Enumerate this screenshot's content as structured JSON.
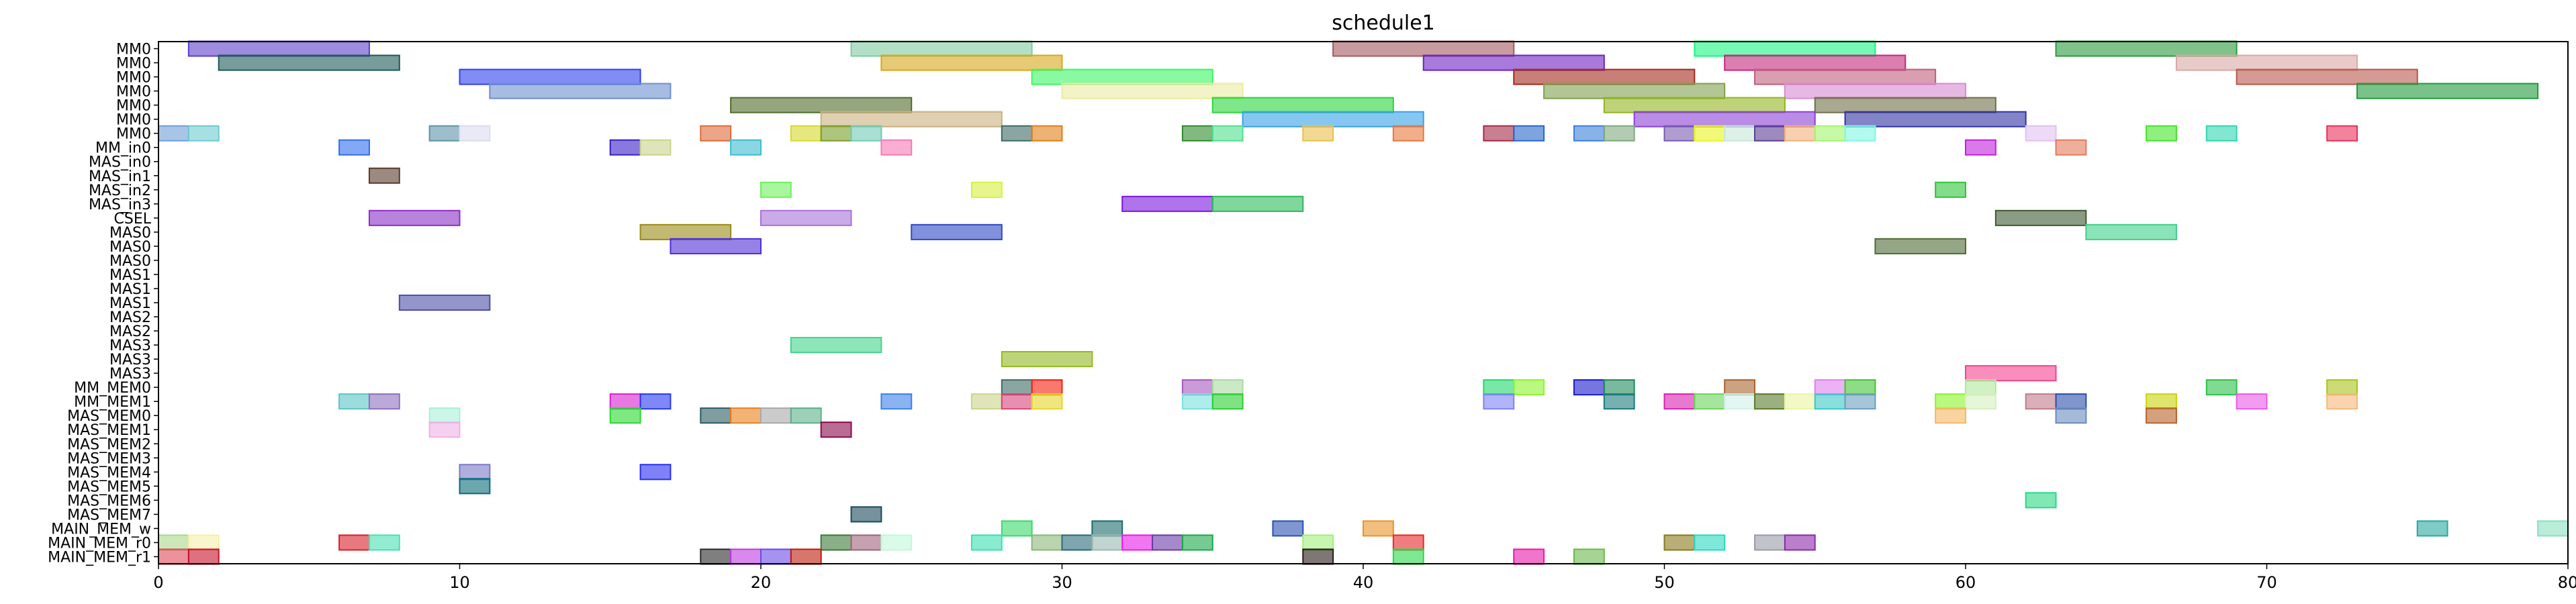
{
  "chart_data": {
    "type": "gantt",
    "title": "schedule1",
    "xlabel": "",
    "ylabel": "",
    "xlim": [
      0,
      80
    ],
    "x_ticks": [
      0,
      10,
      20,
      30,
      40,
      50,
      60,
      70,
      80
    ],
    "grid": false,
    "rows": [
      "MM0",
      "MM0",
      "MM0",
      "MM0",
      "MM0",
      "MM0",
      "MM0",
      "MM_in0",
      "MAS_in0",
      "MAS_in1",
      "MAS_in2",
      "MAS_in3",
      "CSEL",
      "MAS0",
      "MAS0",
      "MAS0",
      "MAS1",
      "MAS1",
      "MAS1",
      "MAS2",
      "MAS2",
      "MAS3",
      "MAS3",
      "MAS3",
      "MM_MEM0",
      "MM_MEM1",
      "MAS_MEM0",
      "MAS_MEM1",
      "MAS_MEM2",
      "MAS_MEM3",
      "MAS_MEM4",
      "MAS_MEM5",
      "MAS_MEM6",
      "MAS_MEM7",
      "MAIN_MEM_w",
      "MAIN_MEM_r0",
      "MAIN_MEM_r1"
    ],
    "tasks": [
      {
        "row": 0,
        "start": 1,
        "end": 7,
        "color": "#5b3fc9"
      },
      {
        "row": 0,
        "start": 23,
        "end": 29,
        "color": "#7fcba0"
      },
      {
        "row": 0,
        "start": 39,
        "end": 45,
        "color": "#a35a5e"
      },
      {
        "row": 0,
        "start": 51,
        "end": 57,
        "color": "#19f582"
      },
      {
        "row": 0,
        "start": 63,
        "end": 69,
        "color": "#2b9b3c"
      },
      {
        "row": 1,
        "start": 2,
        "end": 8,
        "color": "#1c5a56"
      },
      {
        "row": 1,
        "start": 24,
        "end": 30,
        "color": "#d9a61b"
      },
      {
        "row": 1,
        "start": 42,
        "end": 48,
        "color": "#6d22c4"
      },
      {
        "row": 1,
        "start": 52,
        "end": 58,
        "color": "#c4287c"
      },
      {
        "row": 1,
        "start": 67,
        "end": 73,
        "color": "#d9a8a5"
      },
      {
        "row": 2,
        "start": 10,
        "end": 16,
        "color": "#2f3fee"
      },
      {
        "row": 2,
        "start": 29,
        "end": 35,
        "color": "#3af762"
      },
      {
        "row": 2,
        "start": 45,
        "end": 51,
        "color": "#a22a1c"
      },
      {
        "row": 2,
        "start": 53,
        "end": 59,
        "color": "#c05d7c"
      },
      {
        "row": 2,
        "start": 69,
        "end": 75,
        "color": "#b8574b"
      },
      {
        "row": 3,
        "start": 11,
        "end": 17,
        "color": "#6d8fcf"
      },
      {
        "row": 3,
        "start": 30,
        "end": 36,
        "color": "#eaeba0"
      },
      {
        "row": 3,
        "start": 46,
        "end": 52,
        "color": "#7fa04e"
      },
      {
        "row": 3,
        "start": 54,
        "end": 60,
        "color": "#d889d4"
      },
      {
        "row": 3,
        "start": 73,
        "end": 79,
        "color": "#1f9a3a"
      },
      {
        "row": 4,
        "start": 19,
        "end": 25,
        "color": "#4e6b2a"
      },
      {
        "row": 4,
        "start": 35,
        "end": 41,
        "color": "#29d63a"
      },
      {
        "row": 4,
        "start": 48,
        "end": 54,
        "color": "#93b51f"
      },
      {
        "row": 4,
        "start": 55,
        "end": 61,
        "color": "#6e7046"
      },
      {
        "row": 5,
        "start": 22,
        "end": 28,
        "color": "#c9b17e"
      },
      {
        "row": 5,
        "start": 36,
        "end": 42,
        "color": "#36a1e8"
      },
      {
        "row": 5,
        "start": 49,
        "end": 55,
        "color": "#8a40d6"
      },
      {
        "row": 5,
        "start": 56,
        "end": 62,
        "color": "#3132a3"
      },
      {
        "row": 6,
        "start": 0,
        "end": 1,
        "color": "#6f9ed6"
      },
      {
        "row": 6,
        "start": 1,
        "end": 2,
        "color": "#6ccbd0"
      },
      {
        "row": 6,
        "start": 9,
        "end": 10,
        "color": "#5d93a8"
      },
      {
        "row": 6,
        "start": 10,
        "end": 11,
        "color": "#dadcf0"
      },
      {
        "row": 6,
        "start": 18,
        "end": 19,
        "color": "#dd6a3a"
      },
      {
        "row": 6,
        "start": 21,
        "end": 22,
        "color": "#d6d92a"
      },
      {
        "row": 6,
        "start": 22,
        "end": 23,
        "color": "#7a9e27"
      },
      {
        "row": 6,
        "start": 23,
        "end": 24,
        "color": "#6fcbb5"
      },
      {
        "row": 6,
        "start": 28,
        "end": 29,
        "color": "#3d6b64"
      },
      {
        "row": 6,
        "start": 29,
        "end": 30,
        "color": "#e07f1a"
      },
      {
        "row": 6,
        "start": 34,
        "end": 35,
        "color": "#2e8b2a"
      },
      {
        "row": 6,
        "start": 35,
        "end": 36,
        "color": "#4fe08c"
      },
      {
        "row": 6,
        "start": 38,
        "end": 39,
        "color": "#e8c04d"
      },
      {
        "row": 6,
        "start": 41,
        "end": 42,
        "color": "#e8783e"
      },
      {
        "row": 6,
        "start": 44,
        "end": 45,
        "color": "#a42a48"
      },
      {
        "row": 6,
        "start": 45,
        "end": 46,
        "color": "#2767c9"
      },
      {
        "row": 6,
        "start": 47,
        "end": 48,
        "color": "#3b7fd9"
      },
      {
        "row": 6,
        "start": 48,
        "end": 49,
        "color": "#7fa87d"
      },
      {
        "row": 6,
        "start": 50,
        "end": 51,
        "color": "#7a5bb0"
      },
      {
        "row": 6,
        "start": 51,
        "end": 52,
        "color": "#eaf520"
      },
      {
        "row": 6,
        "start": 52,
        "end": 53,
        "color": "#c7e8d8"
      },
      {
        "row": 6,
        "start": 53,
        "end": 54,
        "color": "#5c3d94"
      },
      {
        "row": 6,
        "start": 54,
        "end": 55,
        "color": "#f4b07a"
      },
      {
        "row": 6,
        "start": 55,
        "end": 56,
        "color": "#a3f56a"
      },
      {
        "row": 6,
        "start": 56,
        "end": 57,
        "color": "#7ff7e2"
      },
      {
        "row": 6,
        "start": 62,
        "end": 63,
        "color": "#e0c2f0"
      },
      {
        "row": 6,
        "start": 66,
        "end": 67,
        "color": "#44e42a"
      },
      {
        "row": 6,
        "start": 68,
        "end": 69,
        "color": "#2fd6b0"
      },
      {
        "row": 6,
        "start": 72,
        "end": 73,
        "color": "#e8315c"
      },
      {
        "row": 7,
        "start": 6,
        "end": 7,
        "color": "#2e6ef0"
      },
      {
        "row": 7,
        "start": 15,
        "end": 16,
        "color": "#3a1fc4"
      },
      {
        "row": 7,
        "start": 16,
        "end": 17,
        "color": "#cad48a"
      },
      {
        "row": 7,
        "start": 19,
        "end": 20,
        "color": "#3cbdd0"
      },
      {
        "row": 7,
        "start": 24,
        "end": 25,
        "color": "#f57ab5"
      },
      {
        "row": 7,
        "start": 60,
        "end": 61,
        "color": "#c21fdc"
      },
      {
        "row": 7,
        "start": 63,
        "end": 64,
        "color": "#e57a5c"
      },
      {
        "row": 9,
        "start": 7,
        "end": 8,
        "color": "#5a3b2a"
      },
      {
        "row": 10,
        "start": 20,
        "end": 21,
        "color": "#6ef05c"
      },
      {
        "row": 10,
        "start": 27,
        "end": 28,
        "color": "#d6f040"
      },
      {
        "row": 10,
        "start": 59,
        "end": 60,
        "color": "#2ec43a"
      },
      {
        "row": 11,
        "start": 32,
        "end": 35,
        "color": "#7a16e0"
      },
      {
        "row": 11,
        "start": 35,
        "end": 38,
        "color": "#2cba5a"
      },
      {
        "row": 12,
        "start": 7,
        "end": 10,
        "color": "#8a2fc4"
      },
      {
        "row": 12,
        "start": 20,
        "end": 23,
        "color": "#a872d8"
      },
      {
        "row": 12,
        "start": 61,
        "end": 64,
        "color": "#3d5a30"
      },
      {
        "row": 13,
        "start": 16,
        "end": 19,
        "color": "#9a8a14"
      },
      {
        "row": 13,
        "start": 25,
        "end": 28,
        "color": "#2f48c4"
      },
      {
        "row": 13,
        "start": 64,
        "end": 67,
        "color": "#3ed08a"
      },
      {
        "row": 14,
        "start": 17,
        "end": 20,
        "color": "#4e2fd6"
      },
      {
        "row": 14,
        "start": 57,
        "end": 60,
        "color": "#4f6b35"
      },
      {
        "row": 18,
        "start": 8,
        "end": 11,
        "color": "#4b4fa8"
      },
      {
        "row": 21,
        "start": 21,
        "end": 24,
        "color": "#3fd68a"
      },
      {
        "row": 22,
        "start": 28,
        "end": 31,
        "color": "#95b81f"
      },
      {
        "row": 23,
        "start": 60,
        "end": 63,
        "color": "#f5438f"
      },
      {
        "row": 24,
        "start": 28,
        "end": 29,
        "color": "#3d6b64"
      },
      {
        "row": 24,
        "start": 29,
        "end": 30,
        "color": "#f5200f"
      },
      {
        "row": 24,
        "start": 34,
        "end": 35,
        "color": "#a856c0"
      },
      {
        "row": 24,
        "start": 35,
        "end": 36,
        "color": "#a9dba0"
      },
      {
        "row": 24,
        "start": 44,
        "end": 45,
        "color": "#1fd86b"
      },
      {
        "row": 24,
        "start": 45,
        "end": 46,
        "color": "#8bf52a"
      },
      {
        "row": 24,
        "start": 47,
        "end": 48,
        "color": "#1a1acc"
      },
      {
        "row": 24,
        "start": 48,
        "end": 49,
        "color": "#1f8a5c"
      },
      {
        "row": 24,
        "start": 52,
        "end": 53,
        "color": "#a8642e"
      },
      {
        "row": 24,
        "start": 55,
        "end": 56,
        "color": "#e07ff0"
      },
      {
        "row": 24,
        "start": 56,
        "end": 57,
        "color": "#42c434"
      },
      {
        "row": 24,
        "start": 60,
        "end": 61,
        "color": "#b0e89a"
      },
      {
        "row": 24,
        "start": 68,
        "end": 69,
        "color": "#2cc24a"
      },
      {
        "row": 24,
        "start": 72,
        "end": 73,
        "color": "#a8c41a"
      },
      {
        "row": 25,
        "start": 6,
        "end": 7,
        "color": "#5cc4c4"
      },
      {
        "row": 25,
        "start": 7,
        "end": 8,
        "color": "#8e6fc0"
      },
      {
        "row": 25,
        "start": 15,
        "end": 16,
        "color": "#d81fd0"
      },
      {
        "row": 25,
        "start": 16,
        "end": 17,
        "color": "#2838f0"
      },
      {
        "row": 25,
        "start": 24,
        "end": 25,
        "color": "#3a82e8"
      },
      {
        "row": 25,
        "start": 27,
        "end": 28,
        "color": "#cad48a"
      },
      {
        "row": 25,
        "start": 28,
        "end": 29,
        "color": "#d8447a"
      },
      {
        "row": 25,
        "start": 29,
        "end": 30,
        "color": "#e6d62a"
      },
      {
        "row": 25,
        "start": 34,
        "end": 35,
        "color": "#7ae0e0"
      },
      {
        "row": 25,
        "start": 35,
        "end": 36,
        "color": "#2ad030"
      },
      {
        "row": 25,
        "start": 44,
        "end": 45,
        "color": "#7d82f5"
      },
      {
        "row": 25,
        "start": 48,
        "end": 49,
        "color": "#1a7b7b"
      },
      {
        "row": 25,
        "start": 50,
        "end": 51,
        "color": "#d81fb0"
      },
      {
        "row": 25,
        "start": 51,
        "end": 52,
        "color": "#6ad45a"
      },
      {
        "row": 25,
        "start": 52,
        "end": 53,
        "color": "#d0f0e8"
      },
      {
        "row": 25,
        "start": 53,
        "end": 54,
        "color": "#5a7a2a"
      },
      {
        "row": 25,
        "start": 54,
        "end": 55,
        "color": "#eaf5a0"
      },
      {
        "row": 25,
        "start": 55,
        "end": 56,
        "color": "#3ac8c8"
      },
      {
        "row": 25,
        "start": 56,
        "end": 57,
        "color": "#6a9ec0"
      },
      {
        "row": 25,
        "start": 59,
        "end": 60,
        "color": "#8af52a"
      },
      {
        "row": 25,
        "start": 60,
        "end": 61,
        "color": "#d4f0c0"
      },
      {
        "row": 25,
        "start": 62,
        "end": 63,
        "color": "#c07a8a"
      },
      {
        "row": 25,
        "start": 63,
        "end": 64,
        "color": "#2a4ea8"
      },
      {
        "row": 25,
        "start": 66,
        "end": 67,
        "color": "#c8d40a"
      },
      {
        "row": 25,
        "start": 69,
        "end": 70,
        "color": "#e85ae8"
      },
      {
        "row": 25,
        "start": 72,
        "end": 73,
        "color": "#f5b87a"
      },
      {
        "row": 26,
        "start": 9,
        "end": 10,
        "color": "#a8f0d8"
      },
      {
        "row": 26,
        "start": 15,
        "end": 16,
        "color": "#2ad830"
      },
      {
        "row": 26,
        "start": 18,
        "end": 19,
        "color": "#2a5a62"
      },
      {
        "row": 26,
        "start": 19,
        "end": 20,
        "color": "#e8821a"
      },
      {
        "row": 26,
        "start": 20,
        "end": 21,
        "color": "#a8a8a8"
      },
      {
        "row": 26,
        "start": 21,
        "end": 22,
        "color": "#5ab08a"
      },
      {
        "row": 26,
        "start": 59,
        "end": 60,
        "color": "#f5b860"
      },
      {
        "row": 26,
        "start": 63,
        "end": 64,
        "color": "#6a8ac0"
      },
      {
        "row": 26,
        "start": 66,
        "end": 67,
        "color": "#b8622a"
      },
      {
        "row": 27,
        "start": 9,
        "end": 10,
        "color": "#f0b0e8"
      },
      {
        "row": 27,
        "start": 22,
        "end": 23,
        "color": "#8a0a4a"
      },
      {
        "row": 30,
        "start": 10,
        "end": 11,
        "color": "#7a7ac8"
      },
      {
        "row": 30,
        "start": 16,
        "end": 17,
        "color": "#2a2ef0"
      },
      {
        "row": 31,
        "start": 10,
        "end": 11,
        "color": "#0a6a7a"
      },
      {
        "row": 32,
        "start": 62,
        "end": 63,
        "color": "#2ad884"
      },
      {
        "row": 33,
        "start": 23,
        "end": 24,
        "color": "#1a4a5a"
      },
      {
        "row": 34,
        "start": 28,
        "end": 29,
        "color": "#3ad86a"
      },
      {
        "row": 34,
        "start": 31,
        "end": 32,
        "color": "#1a6a6a"
      },
      {
        "row": 34,
        "start": 37,
        "end": 38,
        "color": "#2a50b0"
      },
      {
        "row": 34,
        "start": 40,
        "end": 41,
        "color": "#e8942a"
      },
      {
        "row": 34,
        "start": 75,
        "end": 76,
        "color": "#2aa8a0"
      },
      {
        "row": 34,
        "start": 79,
        "end": 80,
        "color": "#8ae0c0"
      },
      {
        "row": 35,
        "start": 0,
        "end": 1,
        "color": "#a8d88a"
      },
      {
        "row": 35,
        "start": 1,
        "end": 2,
        "color": "#f5f0a8"
      },
      {
        "row": 35,
        "start": 6,
        "end": 7,
        "color": "#d81f2a"
      },
      {
        "row": 35,
        "start": 7,
        "end": 8,
        "color": "#4ae0b0"
      },
      {
        "row": 35,
        "start": 22,
        "end": 23,
        "color": "#3a7a3a"
      },
      {
        "row": 35,
        "start": 23,
        "end": 24,
        "color": "#a0627a"
      },
      {
        "row": 35,
        "start": 24,
        "end": 25,
        "color": "#c0f8d8"
      },
      {
        "row": 35,
        "start": 27,
        "end": 28,
        "color": "#3ae0b0"
      },
      {
        "row": 35,
        "start": 29,
        "end": 30,
        "color": "#8ab87a"
      },
      {
        "row": 35,
        "start": 30,
        "end": 31,
        "color": "#2a6a7a"
      },
      {
        "row": 35,
        "start": 31,
        "end": 32,
        "color": "#9ab8b0"
      },
      {
        "row": 35,
        "start": 32,
        "end": 33,
        "color": "#e81ae8"
      },
      {
        "row": 35,
        "start": 33,
        "end": 34,
        "color": "#6a3aa8"
      },
      {
        "row": 35,
        "start": 34,
        "end": 35,
        "color": "#1aa84a"
      },
      {
        "row": 35,
        "start": 38,
        "end": 39,
        "color": "#a0f07a"
      },
      {
        "row": 35,
        "start": 41,
        "end": 42,
        "color": "#e8282a"
      },
      {
        "row": 35,
        "start": 50,
        "end": 51,
        "color": "#8a7a1a"
      },
      {
        "row": 35,
        "start": 51,
        "end": 52,
        "color": "#2ad8c0"
      },
      {
        "row": 35,
        "start": 53,
        "end": 54,
        "color": "#9a9aa8"
      },
      {
        "row": 35,
        "start": 54,
        "end": 55,
        "color": "#8a2aa8"
      },
      {
        "row": 36,
        "start": 0,
        "end": 1,
        "color": "#e04a5a"
      },
      {
        "row": 36,
        "start": 1,
        "end": 2,
        "color": "#c8102a"
      },
      {
        "row": 36,
        "start": 18,
        "end": 19,
        "color": "#2a2a2a"
      },
      {
        "row": 36,
        "start": 19,
        "end": 20,
        "color": "#c03ae0"
      },
      {
        "row": 36,
        "start": 20,
        "end": 21,
        "color": "#6a4ae8"
      },
      {
        "row": 36,
        "start": 21,
        "end": 22,
        "color": "#c01a0a"
      },
      {
        "row": 36,
        "start": 38,
        "end": 39,
        "color": "#2a1a1a"
      },
      {
        "row": 36,
        "start": 41,
        "end": 42,
        "color": "#2ad84a"
      },
      {
        "row": 36,
        "start": 45,
        "end": 46,
        "color": "#e81aa8"
      },
      {
        "row": 36,
        "start": 47,
        "end": 48,
        "color": "#6ab84a"
      }
    ]
  }
}
